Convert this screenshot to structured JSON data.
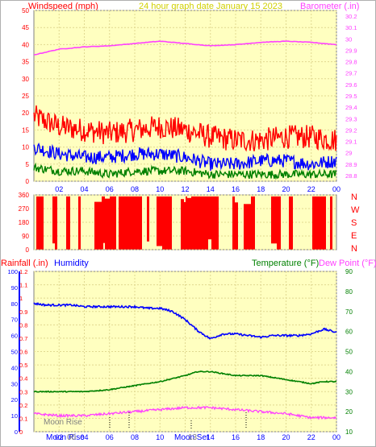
{
  "header": {
    "windspeed_label": "Windspeed (mph)",
    "date_label": "24 hour graph date   January 15 2023",
    "barometer_label": "Barometer (.in)"
  },
  "compass": [
    "N",
    "W",
    "S",
    "E",
    "N"
  ],
  "lower_header": {
    "rainfall_label": "Rainfall (.in)",
    "humidity_label": "Humidity",
    "temperature_label": "Temperature (°F)",
    "dewpoint_label": "Dew Point (°F)"
  },
  "moon": {
    "moon_rise_label": "Moon Rise",
    "moon_rise_time": "00",
    "moon_set_label": "Moon Set",
    "moon_set_time": "13"
  },
  "colors": {
    "plot_bg": "#ffffc0",
    "windspeed": "#ff0000",
    "wind_avg": "#0000ff",
    "wind_low": "#008000",
    "barometer": "#ff40ff",
    "direction": "#ff0000",
    "humidity": "#0000ff",
    "temperature": "#008000",
    "dewpoint": "#ff40ff",
    "date_text": "#d0d000"
  },
  "chart_data": [
    {
      "type": "line",
      "title": "24 hour graph date   January 15 2023",
      "xlabel": "",
      "x_ticks": [
        "02",
        "04",
        "06",
        "08",
        "10",
        "12",
        "14",
        "16",
        "18",
        "20",
        "22",
        "00"
      ],
      "y_left_label": "Windspeed (mph)",
      "y_left_ticks": [
        0,
        5,
        10,
        15,
        20,
        25,
        30,
        35,
        40,
        45,
        50
      ],
      "ylim_left": [
        0,
        50
      ],
      "y_right_label": "Barometer (.in)",
      "y_right_ticks": [
        "28.8",
        "28.9",
        "29",
        "29.1",
        "29.2",
        "29.3",
        "29.4",
        "29.5",
        "29.6",
        "29.7",
        "29.8",
        "29.9",
        "30",
        "30.1",
        "30.2"
      ],
      "ylim_right": [
        28.75,
        30.25
      ],
      "grid": true,
      "series": [
        {
          "name": "Windspeed (mph)",
          "axis": "left",
          "role": "gust",
          "x": [
            0,
            2,
            4,
            6,
            8,
            10,
            12,
            14,
            16,
            18,
            20,
            22,
            24
          ],
          "y": [
            19,
            16,
            15,
            14,
            15,
            16,
            15,
            13,
            12,
            12,
            13,
            13,
            12
          ]
        },
        {
          "name": "Windspeed (mph)",
          "axis": "left",
          "role": "average",
          "x": [
            0,
            2,
            4,
            6,
            8,
            10,
            12,
            14,
            16,
            18,
            20,
            22,
            24
          ],
          "y": [
            10,
            8,
            7,
            7,
            8,
            8,
            7,
            5,
            5,
            6,
            6,
            5,
            6
          ]
        },
        {
          "name": "Windspeed (mph)",
          "axis": "left",
          "role": "low",
          "x": [
            0,
            2,
            4,
            6,
            8,
            10,
            12,
            14,
            16,
            18,
            20,
            22,
            24
          ],
          "y": [
            4,
            3,
            3,
            2,
            3,
            3,
            3,
            2,
            2,
            2,
            2,
            2,
            2
          ]
        },
        {
          "name": "Barometer (.in)",
          "axis": "right",
          "x": [
            0,
            2,
            4,
            6,
            8,
            10,
            12,
            14,
            16,
            18,
            20,
            22,
            24
          ],
          "y": [
            29.86,
            29.91,
            29.93,
            29.94,
            29.96,
            29.98,
            29.96,
            29.94,
            29.95,
            29.97,
            29.98,
            29.97,
            29.95
          ]
        }
      ]
    },
    {
      "type": "bar",
      "title": "",
      "x_ticks": [],
      "y_ticks": [
        0,
        90,
        180,
        270,
        360
      ],
      "ylim": [
        0,
        360
      ],
      "compass_labels": [
        "N",
        "W",
        "S",
        "E",
        "N"
      ],
      "series": [
        {
          "name": "Wind direction",
          "note": "dense red bars spanning roughly 0–350 degrees across all 24 hours"
        }
      ]
    },
    {
      "type": "line",
      "title": "",
      "x_ticks": [
        "02",
        "04",
        "06",
        "08",
        "10",
        "12",
        "14",
        "16",
        "18",
        "20",
        "22",
        "00"
      ],
      "y_far_left_label": "Humidity",
      "y_far_left_ticks": [
        0,
        10,
        20,
        30,
        40,
        50,
        60,
        70,
        80,
        90,
        100
      ],
      "ylim_humidity": [
        0,
        100
      ],
      "y_left_label": "Rainfall (.in)",
      "y_left_ticks": [
        "0",
        "0.1",
        "0.2",
        "0.3",
        "0.4",
        "0.5",
        "0.6",
        "0.7",
        "0.8",
        "0.9",
        "1",
        "1.1",
        "1.2"
      ],
      "ylim_rain": [
        0,
        1.2
      ],
      "y_right_label": "Temperature (°F)",
      "y_right_ticks": [
        10,
        20,
        30,
        40,
        50,
        60,
        70,
        80,
        90
      ],
      "ylim_right": [
        10,
        90
      ],
      "grid": true,
      "series": [
        {
          "name": "Humidity",
          "axis": "humidity",
          "x": [
            0,
            1,
            2,
            3,
            4,
            5,
            6,
            7,
            8,
            9,
            10,
            11,
            12,
            13,
            14,
            15,
            16,
            17,
            18,
            19,
            20,
            21,
            22,
            23,
            24
          ],
          "y": [
            80,
            79,
            79,
            79,
            78,
            78,
            78,
            78,
            78,
            77,
            77,
            75,
            70,
            63,
            58,
            61,
            61,
            60,
            59,
            60,
            60,
            60,
            61,
            64,
            62
          ]
        },
        {
          "name": "Temperature (°F)",
          "axis": "right",
          "x": [
            0,
            2,
            4,
            6,
            8,
            10,
            12,
            13,
            14,
            16,
            18,
            20,
            22,
            23,
            24
          ],
          "y": [
            30,
            30,
            30,
            31,
            33,
            35,
            38,
            40,
            40,
            38,
            38,
            36,
            34,
            35,
            35
          ]
        },
        {
          "name": "Dew Point (°F)",
          "axis": "right",
          "x": [
            0,
            2,
            4,
            6,
            8,
            10,
            12,
            13,
            14,
            16,
            18,
            20,
            22,
            23,
            24
          ],
          "y": [
            19,
            18,
            18,
            19,
            20,
            21,
            22,
            22,
            22,
            21,
            20,
            19,
            17,
            17,
            17
          ]
        },
        {
          "name": "Rainfall (.in)",
          "axis": "left",
          "x": [
            0,
            24
          ],
          "y": [
            0,
            0
          ]
        }
      ]
    }
  ]
}
